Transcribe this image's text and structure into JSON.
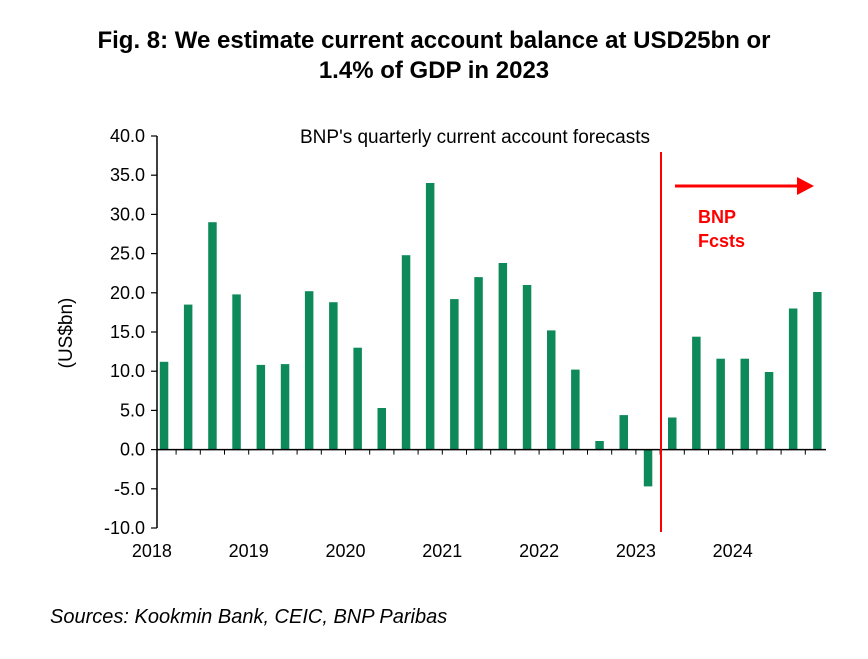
{
  "title_line1": "Fig. 8: We estimate current account balance at USD25bn or",
  "title_line2": "1.4% of GDP in 2023",
  "source": "Sources: Kookmin Bank, CEIC, BNP Paribas",
  "colors": {
    "bar": "#0e8a5a",
    "forecast": "#ff0000",
    "axis": "#000000"
  },
  "chart_data": {
    "type": "bar",
    "annotation": "BNP's quarterly current account forecasts",
    "forecast_label_line1": "BNP",
    "forecast_label_line2": "Fcsts",
    "ylabel": "(US$bn)",
    "ylim": [
      -10,
      40
    ],
    "yticks": [
      "40.0",
      "35.0",
      "30.0",
      "25.0",
      "20.0",
      "15.0",
      "10.0",
      "5.0",
      "0.0",
      "-5.0",
      "-10.0"
    ],
    "x_year_labels": [
      "2018",
      "2019",
      "2020",
      "2021",
      "2022",
      "2023",
      "2024"
    ],
    "categories": [
      "2018Q1",
      "2018Q2",
      "2018Q3",
      "2018Q4",
      "2019Q1",
      "2019Q2",
      "2019Q3",
      "2019Q4",
      "2020Q1",
      "2020Q2",
      "2020Q3",
      "2020Q4",
      "2021Q1",
      "2021Q2",
      "2021Q3",
      "2021Q4",
      "2022Q1",
      "2022Q2",
      "2022Q3",
      "2022Q4",
      "2023Q1",
      "2023Q2",
      "2023Q3",
      "2023Q4",
      "2024Q1",
      "2024Q2",
      "2024Q3",
      "2024Q4"
    ],
    "values": [
      11.2,
      18.5,
      29.0,
      19.8,
      10.8,
      10.9,
      20.2,
      18.8,
      13.0,
      5.3,
      24.8,
      34.0,
      19.2,
      22.0,
      23.8,
      21.0,
      15.2,
      10.2,
      1.1,
      4.4,
      -4.7,
      4.1,
      14.4,
      11.6,
      11.6,
      9.9,
      18.0,
      20.1
    ],
    "forecast_start": "2023Q2",
    "grid": false,
    "legend": "none"
  }
}
